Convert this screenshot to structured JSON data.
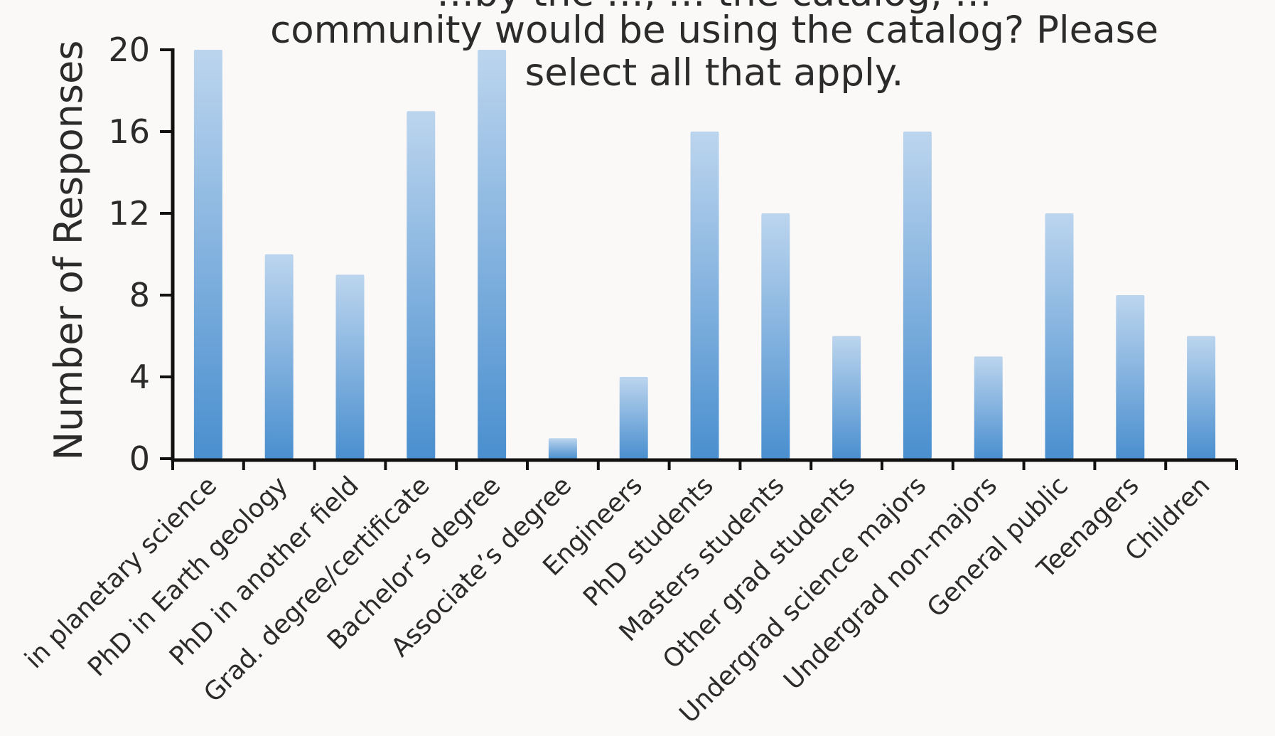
{
  "chart_data": {
    "type": "bar",
    "title_lines": [
      "community would be using the catalog? Please",
      "select all that apply."
    ],
    "title_partial_top_line": "…by the …, … the catalog, …",
    "xlabel": "",
    "ylabel": "Number of Responses",
    "ylim": [
      0,
      20
    ],
    "yticks": [
      0,
      4,
      8,
      12,
      16,
      20
    ],
    "categories": [
      "in planetary science",
      "PhD in Earth geology",
      "PhD in another field",
      "Grad. degree/certificate",
      "Bachelor’s degree",
      "Associate’s degree",
      "Engineers",
      "PhD students",
      "Masters students",
      "Other grad students",
      "Undergrad science majors",
      "Undergrad non-majors",
      "General public",
      "Teenagers",
      "Children"
    ],
    "values": [
      20,
      10,
      9,
      17,
      20,
      1,
      4,
      16,
      12,
      6,
      16,
      5,
      12,
      8,
      6
    ],
    "bar_color_light": "#bcd5ee",
    "bar_color_dark": "#4a8fcf",
    "axis_color": "#111111",
    "grid": false,
    "legend": "none"
  }
}
